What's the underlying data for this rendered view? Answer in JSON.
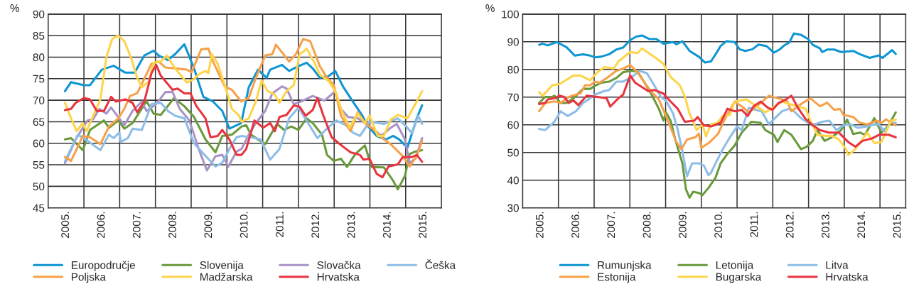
{
  "chart_data": [
    {
      "type": "line",
      "ylabel": "%",
      "ylim": [
        45,
        90
      ],
      "yticks": [
        45,
        50,
        55,
        60,
        65,
        70,
        75,
        80,
        85,
        90
      ],
      "xlim": [
        2005,
        2016
      ],
      "xticks": [
        {
          "value": 2006,
          "label": null
        },
        {
          "value": 2007,
          "label": null
        },
        {
          "value": 2008,
          "label": null
        },
        {
          "value": 2009,
          "label": null
        },
        {
          "value": 2010,
          "label": null
        },
        {
          "value": 2011,
          "label": null
        },
        {
          "value": 2012,
          "label": null
        },
        {
          "value": 2013,
          "label": null
        },
        {
          "value": 2014,
          "label": null
        },
        {
          "value": 2015,
          "label": null
        },
        {
          "value": 2005.5,
          "label": "2005."
        },
        {
          "value": 2006.5,
          "label": "2006."
        },
        {
          "value": 2007.5,
          "label": "2007."
        },
        {
          "value": 2008.5,
          "label": "2008."
        },
        {
          "value": 2009.5,
          "label": "2009."
        },
        {
          "value": 2010.5,
          "label": "2010."
        },
        {
          "value": 2011.5,
          "label": "2011."
        },
        {
          "value": 2012.5,
          "label": "2012."
        },
        {
          "value": 2013.5,
          "label": "2013."
        },
        {
          "value": 2014.5,
          "label": "2014."
        },
        {
          "value": 2015.5,
          "label": "2015."
        }
      ],
      "grid": true,
      "legend": "bottom",
      "marker": "none",
      "line_style": "solid",
      "series": [
        {
          "name": "Europodručje",
          "color": "#0f96d2",
          "x": [
            2005.47,
            2005.64,
            2006.0,
            2006.17,
            2006.5,
            2006.83,
            2007.16,
            2007.42,
            2007.69,
            2007.95,
            2008.09,
            2008.35,
            2008.55,
            2008.81,
            2009.08,
            2009.34,
            2009.61,
            2009.87,
            2010.07,
            2010.4,
            2010.61,
            2010.87,
            2011.11,
            2011.21,
            2011.54,
            2011.74,
            2012.0,
            2012.23,
            2012.4,
            2012.6,
            2012.83,
            2013.03,
            2013.26,
            2013.52,
            2013.79,
            2013.92,
            2014.19,
            2014.45,
            2014.65,
            2014.82,
            2015.05,
            2015.31,
            2015.46
          ],
          "values": [
            72.1,
            74.2,
            73.5,
            73.5,
            77.1,
            78,
            76.4,
            76.4,
            80.4,
            81.5,
            80.4,
            79.3,
            80.7,
            83,
            77.4,
            70.8,
            69.7,
            67.5,
            63.4,
            64.7,
            73,
            77.1,
            75.2,
            77.1,
            78.2,
            76.8,
            77.9,
            78.7,
            77.4,
            75.2,
            75.5,
            76.8,
            73,
            69.7,
            66.4,
            64.2,
            61.7,
            60.9,
            61.7,
            60.9,
            59,
            65.8,
            68.8
          ]
        },
        {
          "name": "Slovenija",
          "color": "#6a9a3c",
          "x": [
            2005.47,
            2005.64,
            2005.97,
            2006.17,
            2006.56,
            2006.7,
            2006.96,
            2007.13,
            2007.36,
            2007.75,
            2007.95,
            2008.15,
            2008.52,
            2008.81,
            2009.08,
            2009.4,
            2009.68,
            2009.87,
            2010.14,
            2010.41,
            2010.54,
            2010.67,
            2011.07,
            2011.4,
            2011.6,
            2011.8,
            2012.0,
            2012.23,
            2012.4,
            2012.66,
            2012.8,
            2012.99,
            2013.19,
            2013.36,
            2013.59,
            2013.86,
            2014.05,
            2014.39,
            2014.65,
            2014.78,
            2014.98,
            2015.11,
            2015.28,
            2015.46
          ],
          "values": [
            60.9,
            61.2,
            58.4,
            63.1,
            65.3,
            63.6,
            65.3,
            63.4,
            64.7,
            69.8,
            66.9,
            66.6,
            70.5,
            68.6,
            66.1,
            60.9,
            57.9,
            61.7,
            62,
            63.9,
            64.2,
            62,
            59.8,
            64.5,
            63.1,
            63.9,
            63.1,
            65.8,
            64.7,
            62,
            57.3,
            55.9,
            56.4,
            54.5,
            57.5,
            59.5,
            54.5,
            54.4,
            51.3,
            49.3,
            52.4,
            57.5,
            58.1,
            58.4
          ]
        },
        {
          "name": "Slovačka",
          "color": "#a993c6",
          "x": [
            2005.47,
            2005.77,
            2006.1,
            2006.26,
            2006.43,
            2006.63,
            2006.76,
            2007.13,
            2007.36,
            2007.62,
            2007.75,
            2008.02,
            2008.28,
            2008.48,
            2008.68,
            2008.95,
            2009.21,
            2009.44,
            2009.68,
            2009.87,
            2010.04,
            2010.27,
            2010.41,
            2010.61,
            2010.81,
            2011.07,
            2011.27,
            2011.54,
            2011.67,
            2011.87,
            2012.13,
            2012.4,
            2012.73,
            2013.03,
            2013.19,
            2013.39,
            2013.66,
            2013.86,
            2014.12,
            2014.32,
            2014.58,
            2014.75,
            2014.98,
            2015.11,
            2015.28,
            2015.46
          ],
          "values": [
            55.4,
            60.9,
            65.3,
            65.6,
            68,
            66.9,
            68.3,
            64.2,
            67.5,
            69.7,
            67.5,
            69.1,
            71.9,
            71.9,
            68,
            65.3,
            58.7,
            53.7,
            57,
            57.3,
            54.6,
            58.1,
            58.7,
            62,
            64.7,
            67.5,
            71.6,
            73.2,
            72.7,
            69.1,
            69.9,
            71,
            69.9,
            72.1,
            68,
            66.1,
            65.8,
            64.7,
            63.1,
            61.7,
            63.6,
            64.5,
            60.9,
            55.4,
            56.5,
            61.2
          ]
        },
        {
          "name": "Češka",
          "color": "#8dbde6",
          "x": [
            2005.47,
            2005.83,
            2006.1,
            2006.46,
            2006.7,
            2006.83,
            2006.99,
            2007.03,
            2007.23,
            2007.36,
            2007.62,
            2007.89,
            2008.15,
            2008.35,
            2008.55,
            2008.81,
            2009.08,
            2009.34,
            2009.68,
            2009.87,
            2010.07,
            2010.27,
            2010.41,
            2010.67,
            2010.94,
            2011.21,
            2011.47,
            2011.74,
            2012.0,
            2012.27,
            2012.53,
            2012.8,
            2013.06,
            2013.33,
            2013.52,
            2013.72,
            2013.99,
            2014.39,
            2014.78,
            2015.05,
            2015.18,
            2015.35,
            2015.46
          ],
          "values": [
            55.9,
            62,
            60.6,
            58.4,
            62,
            61.2,
            62.5,
            60.3,
            61.2,
            63.4,
            63.1,
            69.1,
            69.4,
            67.5,
            66.4,
            65.8,
            60,
            57.6,
            54.6,
            55.5,
            58.7,
            61.4,
            61.7,
            61.4,
            60.9,
            56.2,
            58.7,
            65.8,
            68.3,
            64.7,
            61.2,
            63.4,
            65.3,
            64.2,
            62.5,
            61.7,
            65,
            64.5,
            65.8,
            63.6,
            62.3,
            66.4,
            64.5
          ]
        },
        {
          "name": "Poljska",
          "color": "#f6a04a",
          "x": [
            2005.47,
            2005.64,
            2005.97,
            2006.17,
            2006.46,
            2006.7,
            2006.96,
            2007.13,
            2007.29,
            2007.49,
            2007.62,
            2007.89,
            2008.09,
            2008.28,
            2008.55,
            2008.88,
            2009.01,
            2009.28,
            2009.48,
            2009.61,
            2009.94,
            2010.14,
            2010.4,
            2010.61,
            2010.81,
            2011.07,
            2011.27,
            2011.37,
            2011.74,
            2011.93,
            2012.13,
            2012.33,
            2012.6,
            2012.8,
            2012.99,
            2013.19,
            2013.46,
            2013.66,
            2013.86,
            2014.12,
            2014.39,
            2014.58,
            2014.92,
            2015.11,
            2015.31,
            2015.46
          ],
          "values": [
            56.8,
            55.9,
            61.7,
            61.4,
            59.8,
            63.9,
            65.8,
            68,
            71,
            71.6,
            73.8,
            78.5,
            79,
            77.6,
            77.4,
            77.1,
            76.5,
            81.8,
            82,
            79,
            73.2,
            72.4,
            69.7,
            70.5,
            75.2,
            80.4,
            80.7,
            82.9,
            79,
            80.7,
            84.2,
            83.7,
            77.9,
            75.2,
            73.5,
            66.4,
            62.8,
            67.2,
            64.7,
            63.1,
            60.9,
            59.8,
            57,
            54.6,
            57,
            60.6
          ]
        },
        {
          "name": "Madžarska",
          "color": "#fdd44a",
          "x": [
            2005.47,
            2005.64,
            2005.8,
            2005.97,
            2006.07,
            2006.23,
            2006.46,
            2006.63,
            2006.79,
            2006.96,
            2007.13,
            2007.32,
            2007.49,
            2007.62,
            2007.82,
            2007.95,
            2008.15,
            2008.32,
            2008.55,
            2008.88,
            2009.08,
            2009.21,
            2009.4,
            2009.48,
            2009.58,
            2009.74,
            2009.94,
            2010.14,
            2010.34,
            2010.41,
            2010.61,
            2010.81,
            2010.97,
            2011.14,
            2011.34,
            2011.47,
            2011.67,
            2011.87,
            2012.03,
            2012.13,
            2012.23,
            2012.46,
            2012.6,
            2012.86,
            2013.06,
            2013.19,
            2013.43,
            2013.66,
            2013.86,
            2013.99,
            2014.22,
            2014.39,
            2014.58,
            2014.78,
            2015.05,
            2015.31,
            2015.46
          ],
          "values": [
            69.4,
            65.8,
            62.8,
            64.7,
            62.8,
            65.8,
            70.2,
            80.1,
            84.2,
            85,
            83.7,
            79.8,
            75.2,
            73,
            74.4,
            78.7,
            79,
            80.4,
            77.4,
            74.1,
            74.9,
            76,
            76.8,
            76.3,
            80.7,
            78.5,
            73.5,
            68,
            66.4,
            65,
            65.8,
            69.7,
            74.6,
            72.1,
            71.3,
            69.4,
            72.1,
            73.5,
            80.7,
            81.2,
            82,
            78.5,
            76,
            74.3,
            71.6,
            68,
            63.6,
            66.9,
            64.7,
            66.4,
            61.7,
            61.7,
            65.5,
            66.6,
            65.8,
            69.7,
            72.1
          ]
        },
        {
          "name": "Hrvatska",
          "color": "#e8343f",
          "x": [
            2005.47,
            2005.64,
            2005.77,
            2006.0,
            2006.17,
            2006.36,
            2006.56,
            2006.76,
            2006.89,
            2007.16,
            2007.36,
            2007.49,
            2007.69,
            2007.89,
            2008.02,
            2008.15,
            2008.48,
            2008.62,
            2008.81,
            2008.98,
            2009.15,
            2009.4,
            2009.54,
            2009.74,
            2009.87,
            2010.07,
            2010.27,
            2010.41,
            2010.54,
            2010.77,
            2011.01,
            2011.21,
            2011.34,
            2011.47,
            2011.67,
            2011.87,
            2012.03,
            2012.2,
            2012.4,
            2012.53,
            2012.7,
            2012.93,
            2013.13,
            2013.33,
            2013.46,
            2013.72,
            2013.82,
            2013.99,
            2014.19,
            2014.35,
            2014.52,
            2014.78,
            2014.92,
            2015.18,
            2015.31,
            2015.46
          ],
          "values": [
            67.7,
            68,
            69.4,
            70.5,
            70.2,
            67.5,
            67.5,
            70.8,
            69.7,
            70.2,
            69.4,
            67.2,
            69.7,
            76.3,
            78.2,
            75.7,
            72.4,
            72.7,
            71.6,
            71.6,
            68.6,
            65.8,
            61.4,
            61.7,
            63.1,
            60.9,
            57.3,
            57.3,
            58.7,
            65.3,
            63.6,
            64.7,
            62.8,
            66.1,
            66.6,
            68.8,
            68.5,
            66.4,
            67.7,
            70.5,
            66.4,
            61.4,
            60,
            58.7,
            57.9,
            57.3,
            56.2,
            56.4,
            52.9,
            52.1,
            54.6,
            55.1,
            56.8,
            56.8,
            57.3,
            55.7
          ]
        }
      ]
    },
    {
      "type": "line",
      "ylabel": "%",
      "ylim": [
        30,
        100
      ],
      "yticks": [
        30,
        40,
        50,
        60,
        70,
        80,
        90,
        100
      ],
      "xlim": [
        2005,
        2015.72
      ],
      "xticks": [
        {
          "value": 2006,
          "label": null
        },
        {
          "value": 2007,
          "label": null
        },
        {
          "value": 2008,
          "label": null
        },
        {
          "value": 2009,
          "label": null
        },
        {
          "value": 2010,
          "label": null
        },
        {
          "value": 2011,
          "label": null
        },
        {
          "value": 2012,
          "label": null
        },
        {
          "value": 2013,
          "label": null
        },
        {
          "value": 2014,
          "label": null
        },
        {
          "value": 2015,
          "label": null
        },
        {
          "value": 2005.5,
          "label": "2005."
        },
        {
          "value": 2006.5,
          "label": "2006."
        },
        {
          "value": 2007.5,
          "label": "2007."
        },
        {
          "value": 2008.5,
          "label": "2008."
        },
        {
          "value": 2009.5,
          "label": "2009."
        },
        {
          "value": 2010.5,
          "label": "2010."
        },
        {
          "value": 2011.5,
          "label": "2011."
        },
        {
          "value": 2012.5,
          "label": "2012."
        },
        {
          "value": 2013.5,
          "label": "2013."
        },
        {
          "value": 2014.5,
          "label": "2014."
        },
        {
          "value": 2015.5,
          "label": "2015."
        }
      ],
      "grid": true,
      "legend": "bottom",
      "marker": "none",
      "line_style": "solid",
      "series": [
        {
          "name": "Rumunjska",
          "color": "#0f96d2",
          "x": [
            2005.46,
            2005.56,
            2005.7,
            2005.96,
            2006.23,
            2006.46,
            2006.69,
            2006.89,
            2007.02,
            2007.19,
            2007.42,
            2007.62,
            2007.81,
            2008.01,
            2008.18,
            2008.34,
            2008.54,
            2008.74,
            2008.94,
            2009.21,
            2009.3,
            2009.47,
            2009.67,
            2009.93,
            2010.1,
            2010.27,
            2010.4,
            2010.54,
            2010.7,
            2010.93,
            2011.07,
            2011.23,
            2011.43,
            2011.6,
            2011.83,
            2012.03,
            2012.19,
            2012.32,
            2012.46,
            2012.59,
            2012.79,
            2012.99,
            2013.12,
            2013.32,
            2013.38,
            2013.52,
            2013.72,
            2013.91,
            2014.25,
            2014.44,
            2014.71,
            2014.97,
            2015.07,
            2015.34,
            2015.44
          ],
          "values": [
            88.9,
            89.3,
            88.7,
            89.9,
            88,
            85,
            85.5,
            85,
            84.4,
            84.6,
            85.5,
            87.2,
            87.9,
            90.6,
            91.9,
            92.3,
            91,
            91,
            89.3,
            89.9,
            89.1,
            90.2,
            86.7,
            84.6,
            82.5,
            82.9,
            85.5,
            88.5,
            90.2,
            89.9,
            87.3,
            86.7,
            87.3,
            89,
            88.4,
            86.1,
            87.2,
            88.7,
            89.7,
            93,
            92.5,
            91,
            88.9,
            87.6,
            86.3,
            87.2,
            87.2,
            86.3,
            86.7,
            85.5,
            84.2,
            85.1,
            84.2,
            87,
            85.6
          ]
        },
        {
          "name": "Letonija",
          "color": "#6a9a3c",
          "x": [
            2005.46,
            2005.63,
            2005.83,
            2005.89,
            2006.06,
            2006.23,
            2006.42,
            2006.69,
            2006.89,
            2007.02,
            2007.19,
            2007.42,
            2007.62,
            2007.81,
            2008.01,
            2008.21,
            2008.41,
            2008.61,
            2008.81,
            2008.94,
            2009.01,
            2009.14,
            2009.27,
            2009.47,
            2009.57,
            2009.67,
            2009.77,
            2009.93,
            2010.03,
            2010.2,
            2010.4,
            2010.54,
            2010.73,
            2010.93,
            2011.13,
            2011.4,
            2011.66,
            2011.79,
            2012.03,
            2012.13,
            2012.32,
            2012.52,
            2012.79,
            2012.95,
            2013.12,
            2013.25,
            2013.45,
            2013.65,
            2013.91,
            2014.08,
            2014.25,
            2014.44,
            2014.58,
            2014.84,
            2015.04,
            2015.24,
            2015.44
          ],
          "values": [
            67.9,
            70.1,
            70.1,
            70.5,
            67.9,
            67.9,
            69.6,
            73,
            73,
            74.1,
            75.2,
            75.6,
            76.9,
            79,
            79.5,
            79.4,
            75.2,
            70.9,
            65.8,
            61.5,
            64.5,
            61.5,
            54.7,
            46.1,
            36.7,
            33.7,
            35.8,
            35.4,
            34.6,
            37.2,
            41,
            46.1,
            49.5,
            52.5,
            57.2,
            61.1,
            60.7,
            58.1,
            56.4,
            53.8,
            58.1,
            56.4,
            51.2,
            52.1,
            54.2,
            58.1,
            54.2,
            55.5,
            58.1,
            61.9,
            56.7,
            57.2,
            56.4,
            62.4,
            57.2,
            59.8,
            64.5
          ]
        },
        {
          "name": "Litva",
          "color": "#8dbde6",
          "x": [
            2005.46,
            2005.63,
            2005.89,
            2006.06,
            2006.26,
            2006.49,
            2006.69,
            2006.89,
            2007.02,
            2007.28,
            2007.42,
            2007.62,
            2007.81,
            2008.01,
            2008.28,
            2008.48,
            2008.68,
            2008.87,
            2009.01,
            2009.21,
            2009.34,
            2009.47,
            2009.6,
            2009.74,
            2009.93,
            2010.07,
            2010.2,
            2010.27,
            2010.4,
            2010.6,
            2010.8,
            2011.0,
            2011.13,
            2011.33,
            2011.53,
            2011.69,
            2011.89,
            2012.06,
            2012.26,
            2012.46,
            2012.59,
            2012.79,
            2012.99,
            2013.19,
            2013.38,
            2013.58,
            2013.78,
            2013.98,
            2014.18,
            2014.38,
            2014.64,
            2014.84,
            2014.97,
            2015.11,
            2015.31,
            2015.44
          ],
          "values": [
            58.5,
            58.1,
            61.1,
            64.9,
            63.2,
            64.9,
            67.9,
            69.6,
            70.9,
            72.2,
            72.6,
            75.6,
            75.6,
            76.9,
            79.5,
            78.6,
            74.3,
            70.1,
            68.8,
            64.1,
            58.1,
            50.4,
            41.4,
            46.1,
            46.1,
            45.3,
            41.8,
            42.7,
            46.1,
            51.2,
            55.5,
            59.4,
            58.1,
            66.2,
            65.4,
            64.9,
            60.2,
            62.4,
            64.9,
            65.8,
            64.9,
            62.4,
            60.7,
            60.2,
            61.1,
            61.5,
            58.1,
            59.8,
            60.2,
            58.9,
            59.4,
            60.2,
            60.2,
            57.7,
            60.7,
            60.7
          ]
        },
        {
          "name": "Estonija",
          "color": "#f6a04a",
          "x": [
            2005.46,
            2005.63,
            2005.89,
            2006.06,
            2006.29,
            2006.49,
            2006.62,
            2006.75,
            2006.89,
            2007.02,
            2007.15,
            2007.35,
            2007.62,
            2007.81,
            2008.01,
            2008.21,
            2008.41,
            2008.61,
            2008.81,
            2009.01,
            2009.17,
            2009.3,
            2009.44,
            2009.6,
            2009.83,
            2009.93,
            2010.0,
            2010.2,
            2010.27,
            2010.47,
            2010.67,
            2010.93,
            2011.13,
            2011.33,
            2011.66,
            2011.89,
            2012.19,
            2012.39,
            2012.52,
            2012.79,
            2013.05,
            2013.32,
            2013.52,
            2013.72,
            2013.88,
            2013.98,
            2014.25,
            2014.44,
            2014.64,
            2014.91,
            2015.04,
            2015.17,
            2015.44
          ],
          "values": [
            64.9,
            67.9,
            68.5,
            67.9,
            70.1,
            70.9,
            71.4,
            74.3,
            74.3,
            75.6,
            75.2,
            76.9,
            79.5,
            80.3,
            81.6,
            79.1,
            75.2,
            71.8,
            69.2,
            63.2,
            58.1,
            53.8,
            51.2,
            54.7,
            55.5,
            56.8,
            51.7,
            53.4,
            54.2,
            56.8,
            62.4,
            68.4,
            66.7,
            64.5,
            67.9,
            70.5,
            69.4,
            68.8,
            64.9,
            67.5,
            69.6,
            66.7,
            68,
            65.4,
            65.8,
            63.6,
            62.8,
            60.7,
            60.2,
            61.5,
            60.7,
            62,
            59.8
          ]
        },
        {
          "name": "Bugarska",
          "color": "#fdd44a",
          "x": [
            2005.46,
            2005.56,
            2005.83,
            2006.03,
            2006.42,
            2006.62,
            2006.89,
            2007.09,
            2007.28,
            2007.55,
            2007.68,
            2008.01,
            2008.21,
            2008.34,
            2008.68,
            2008.94,
            2009.14,
            2009.4,
            2009.54,
            2009.67,
            2009.87,
            2010.03,
            2010.13,
            2010.27,
            2010.44,
            2010.6,
            2010.8,
            2010.93,
            2011.26,
            2011.6,
            2011.79,
            2012.06,
            2012.26,
            2012.46,
            2012.72,
            2012.92,
            2013.05,
            2013.25,
            2013.45,
            2013.65,
            2013.85,
            2014.05,
            2014.11,
            2014.31,
            2014.51,
            2014.64,
            2014.84,
            2015.04,
            2015.31,
            2015.44
          ],
          "values": [
            71.8,
            70.5,
            74.3,
            74.7,
            77.8,
            77.8,
            76.1,
            79,
            80.8,
            80.4,
            82.9,
            86.3,
            85.9,
            87.6,
            84.6,
            82,
            77.3,
            74.3,
            70.1,
            64.1,
            58.1,
            60.2,
            55.8,
            60.2,
            60.6,
            63.2,
            63.6,
            68.4,
            69.2,
            66.2,
            64.5,
            66.7,
            68.4,
            67.5,
            66.6,
            65.8,
            61.5,
            56.4,
            56,
            56,
            54.7,
            51.2,
            49.1,
            51.2,
            54.7,
            57.2,
            53.4,
            53.8,
            61.5,
            61.9
          ]
        },
        {
          "name": "Hrvatska",
          "color": "#e8343f",
          "x": [
            2005.46,
            2005.63,
            2005.7,
            2005.89,
            2006.03,
            2006.16,
            2006.29,
            2006.42,
            2006.56,
            2006.79,
            2007.02,
            2007.35,
            2007.45,
            2007.68,
            2007.81,
            2008.01,
            2008.15,
            2008.51,
            2008.68,
            2008.94,
            2009.14,
            2009.34,
            2009.54,
            2009.8,
            2009.9,
            2010.07,
            2010.27,
            2010.54,
            2010.73,
            2010.93,
            2011.13,
            2011.3,
            2011.46,
            2011.66,
            2011.86,
            2011.99,
            2012.16,
            2012.32,
            2012.52,
            2012.72,
            2012.92,
            2013.12,
            2013.32,
            2013.58,
            2013.85,
            2013.98,
            2014.11,
            2014.31,
            2014.51,
            2014.78,
            2014.97,
            2015.24,
            2015.44
          ],
          "values": [
            67.5,
            67.9,
            69.2,
            69.6,
            70.5,
            70.1,
            67.9,
            68.8,
            67.1,
            70.5,
            70.2,
            69.6,
            66.6,
            69.6,
            70.9,
            77.8,
            75.2,
            72.2,
            72.6,
            71.3,
            68.4,
            65.8,
            61.1,
            61.5,
            62.8,
            59.8,
            59.4,
            60.7,
            65.8,
            64.9,
            65.4,
            63.2,
            66.7,
            68.4,
            66.2,
            65.4,
            67.9,
            68.8,
            70.5,
            65.8,
            62.1,
            59.8,
            58.1,
            57.2,
            57.2,
            55.5,
            53.8,
            52.1,
            54.2,
            55.1,
            56.4,
            56.4,
            55.5
          ]
        }
      ]
    }
  ]
}
